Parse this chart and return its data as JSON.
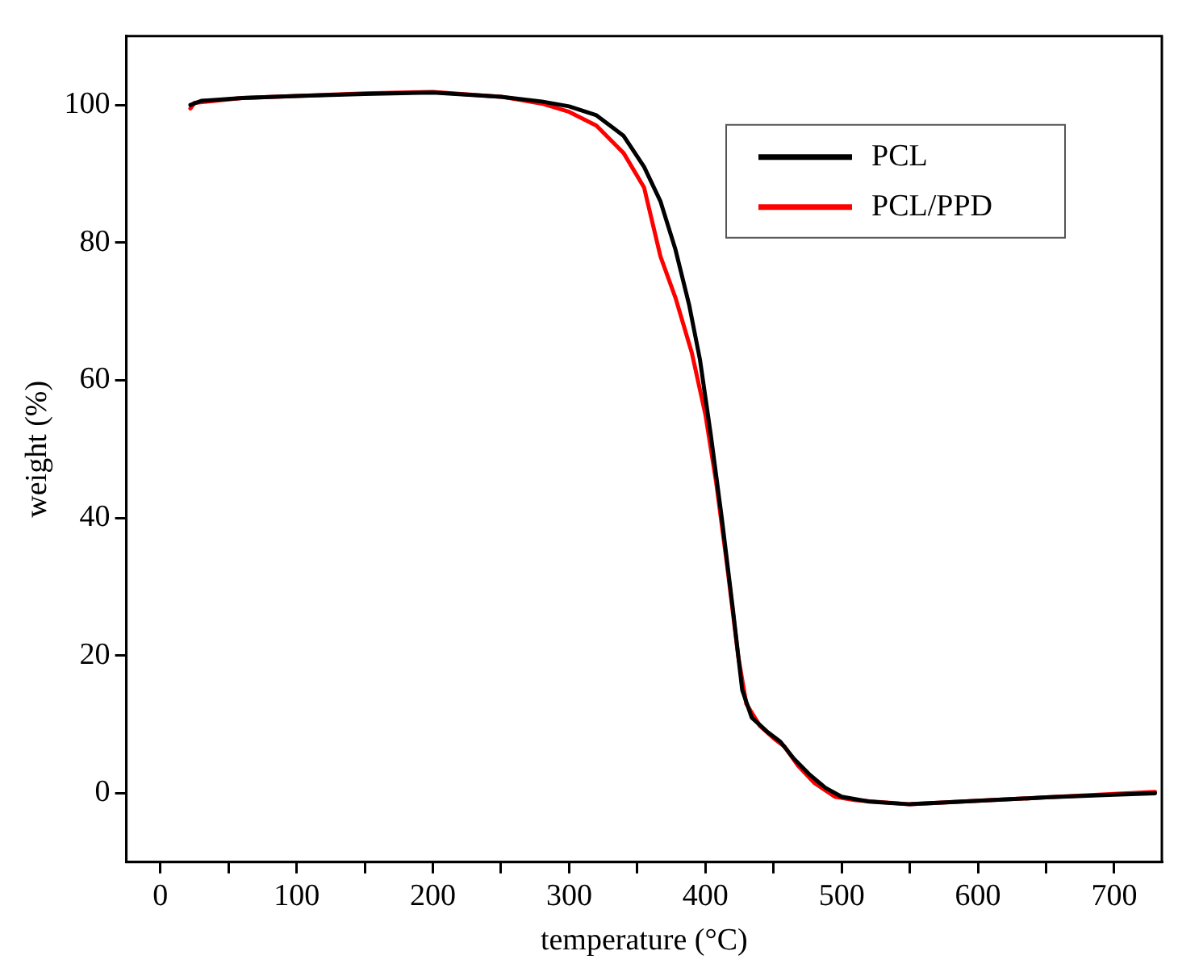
{
  "chart_data": {
    "type": "line",
    "xlabel": "temperature (°C)",
    "ylabel": "weight (%)",
    "xlim": [
      -25,
      735
    ],
    "ylim": [
      -10,
      110
    ],
    "xticks": [
      0,
      {
        "value": 50,
        "label": null
      },
      100,
      {
        "value": 150,
        "label": null
      },
      200,
      {
        "value": 250,
        "label": null
      },
      300,
      {
        "value": 350,
        "label": null
      },
      400,
      {
        "value": 450,
        "label": null
      },
      500,
      {
        "value": 550,
        "label": null
      },
      600,
      {
        "value": 650,
        "label": null
      },
      700
    ],
    "yticks": [
      0,
      20,
      40,
      60,
      80,
      100
    ],
    "grid": false,
    "legend": "top right",
    "marker": "none",
    "line_style": "solid",
    "series": [
      {
        "name": "PCL",
        "color": "#000000",
        "x": [
          22,
          30,
          60,
          100,
          150,
          200,
          250,
          280,
          300,
          320,
          340,
          355,
          367,
          378,
          388,
          396,
          404,
          412,
          420,
          427,
          434,
          445,
          455,
          465,
          476,
          488,
          500,
          520,
          550,
          600,
          650,
          700,
          730
        ],
        "values": [
          100,
          100.6,
          101,
          101.3,
          101.6,
          101.8,
          101.2,
          100.5,
          99.8,
          98.5,
          95.5,
          91,
          86,
          79,
          71,
          63,
          52,
          40,
          27,
          15,
          11,
          9,
          7.5,
          5,
          2.8,
          0.8,
          -0.5,
          -1.2,
          -1.6,
          -1.1,
          -0.6,
          -0.2,
          0
        ]
      },
      {
        "name": "PCL/PPD",
        "color": "#ff0000",
        "x": [
          22,
          25,
          60,
          100,
          150,
          200,
          250,
          280,
          300,
          320,
          340,
          355,
          367,
          378,
          390,
          400,
          408,
          416,
          424,
          430,
          440,
          450,
          458,
          468,
          480,
          495,
          510,
          550,
          600,
          650,
          700,
          730
        ],
        "values": [
          99.5,
          100.3,
          101,
          101.3,
          101.7,
          101.9,
          101.2,
          100.2,
          99,
          97,
          93,
          88,
          78,
          72,
          64,
          55,
          45,
          33,
          20,
          13,
          9.8,
          8,
          6.8,
          4,
          1.5,
          -0.5,
          -1,
          -1.6,
          -1.1,
          -0.6,
          -0.1,
          0.2
        ]
      }
    ]
  }
}
